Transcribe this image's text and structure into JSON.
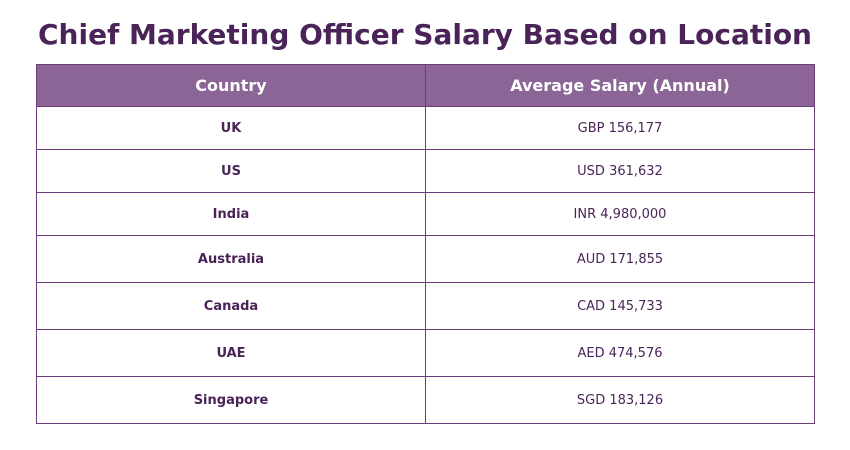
{
  "title": "Chief Marketing Officer Salary Based on Location",
  "columns": [
    "Country",
    "Average Salary (Annual)"
  ],
  "rows": [
    {
      "country": "UK",
      "salary": "GBP 156,177"
    },
    {
      "country": "US",
      "salary": "USD 361,632"
    },
    {
      "country": "India",
      "salary": "INR 4,980,000"
    },
    {
      "country": "Australia",
      "salary": "AUD 171,855"
    },
    {
      "country": "Canada",
      "salary": "CAD 145,733"
    },
    {
      "country": "UAE",
      "salary": "AED 474,576"
    },
    {
      "country": "Singapore",
      "salary": "SGD 183,126"
    }
  ],
  "colors": {
    "title": "#4a2458",
    "header_bg": "#8a6596",
    "header_text": "#ffffff",
    "border": "#6d3d79",
    "cell_text": "#4a2458"
  }
}
